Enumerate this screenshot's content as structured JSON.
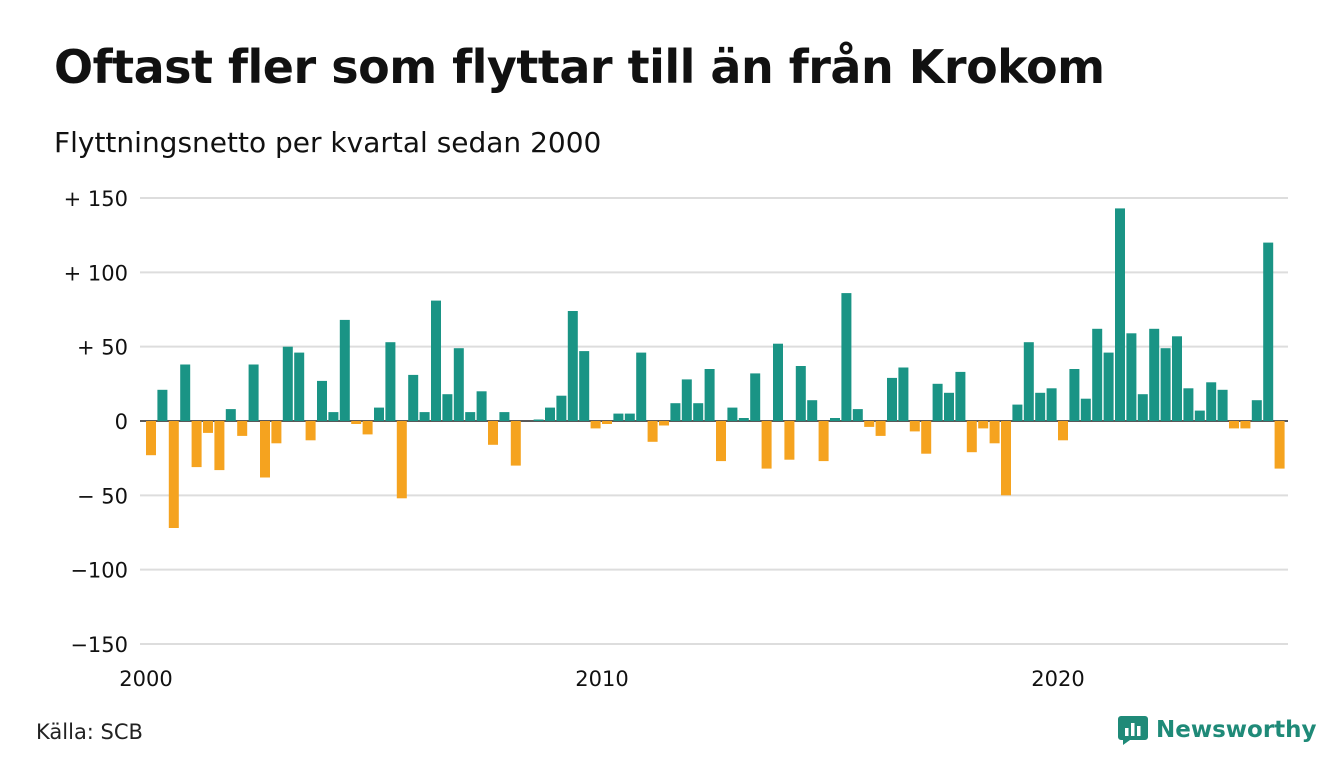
{
  "title": "Oftast fler som flyttar till än från Krokom",
  "subtitle": "Flyttningsnetto per kvartal sedan 2000",
  "source": "Källa: SCB",
  "brand": "Newsworthy",
  "colors": {
    "positive": "#1a9485",
    "negative": "#f5a31f",
    "grid": "#dddddd",
    "brand": "#1f8a78"
  },
  "chart_data": {
    "type": "bar",
    "title": "Oftast fler som flyttar till än från Krokom",
    "subtitle": "Flyttningsnetto per kvartal sedan 2000",
    "xlabel": "",
    "ylabel": "",
    "ylim": [
      -150,
      150
    ],
    "yticks": [
      150,
      100,
      50,
      0,
      -50,
      -100,
      -150
    ],
    "ytick_labels": [
      "+ 150",
      "+ 100",
      "+  50",
      "0",
      "− 50",
      "−100",
      "−150"
    ],
    "xticks": [
      2000,
      2010,
      2020
    ],
    "xtick_labels": [
      "2000",
      "2010",
      "2020"
    ],
    "grid": true,
    "start_year": 2000,
    "period": "quarter",
    "values": [
      -23,
      21,
      -72,
      38,
      -31,
      -8,
      -33,
      8,
      -10,
      38,
      -38,
      -15,
      50,
      46,
      -13,
      27,
      6,
      68,
      -2,
      -9,
      9,
      53,
      -52,
      31,
      6,
      81,
      18,
      49,
      6,
      20,
      -16,
      6,
      -30,
      0,
      1,
      9,
      17,
      74,
      47,
      -5,
      -2,
      5,
      5,
      46,
      -14,
      -3,
      12,
      28,
      12,
      35,
      -27,
      9,
      2,
      32,
      -32,
      52,
      -26,
      37,
      14,
      -27,
      2,
      86,
      8,
      -4,
      -10,
      29,
      36,
      -7,
      -22,
      25,
      19,
      33,
      -21,
      -5,
      -15,
      -50,
      11,
      53,
      19,
      22,
      -13,
      35,
      15,
      62,
      46,
      143,
      59,
      18,
      62,
      49,
      57,
      22,
      7,
      26,
      21,
      -5,
      -5,
      14,
      120,
      -32
    ]
  }
}
